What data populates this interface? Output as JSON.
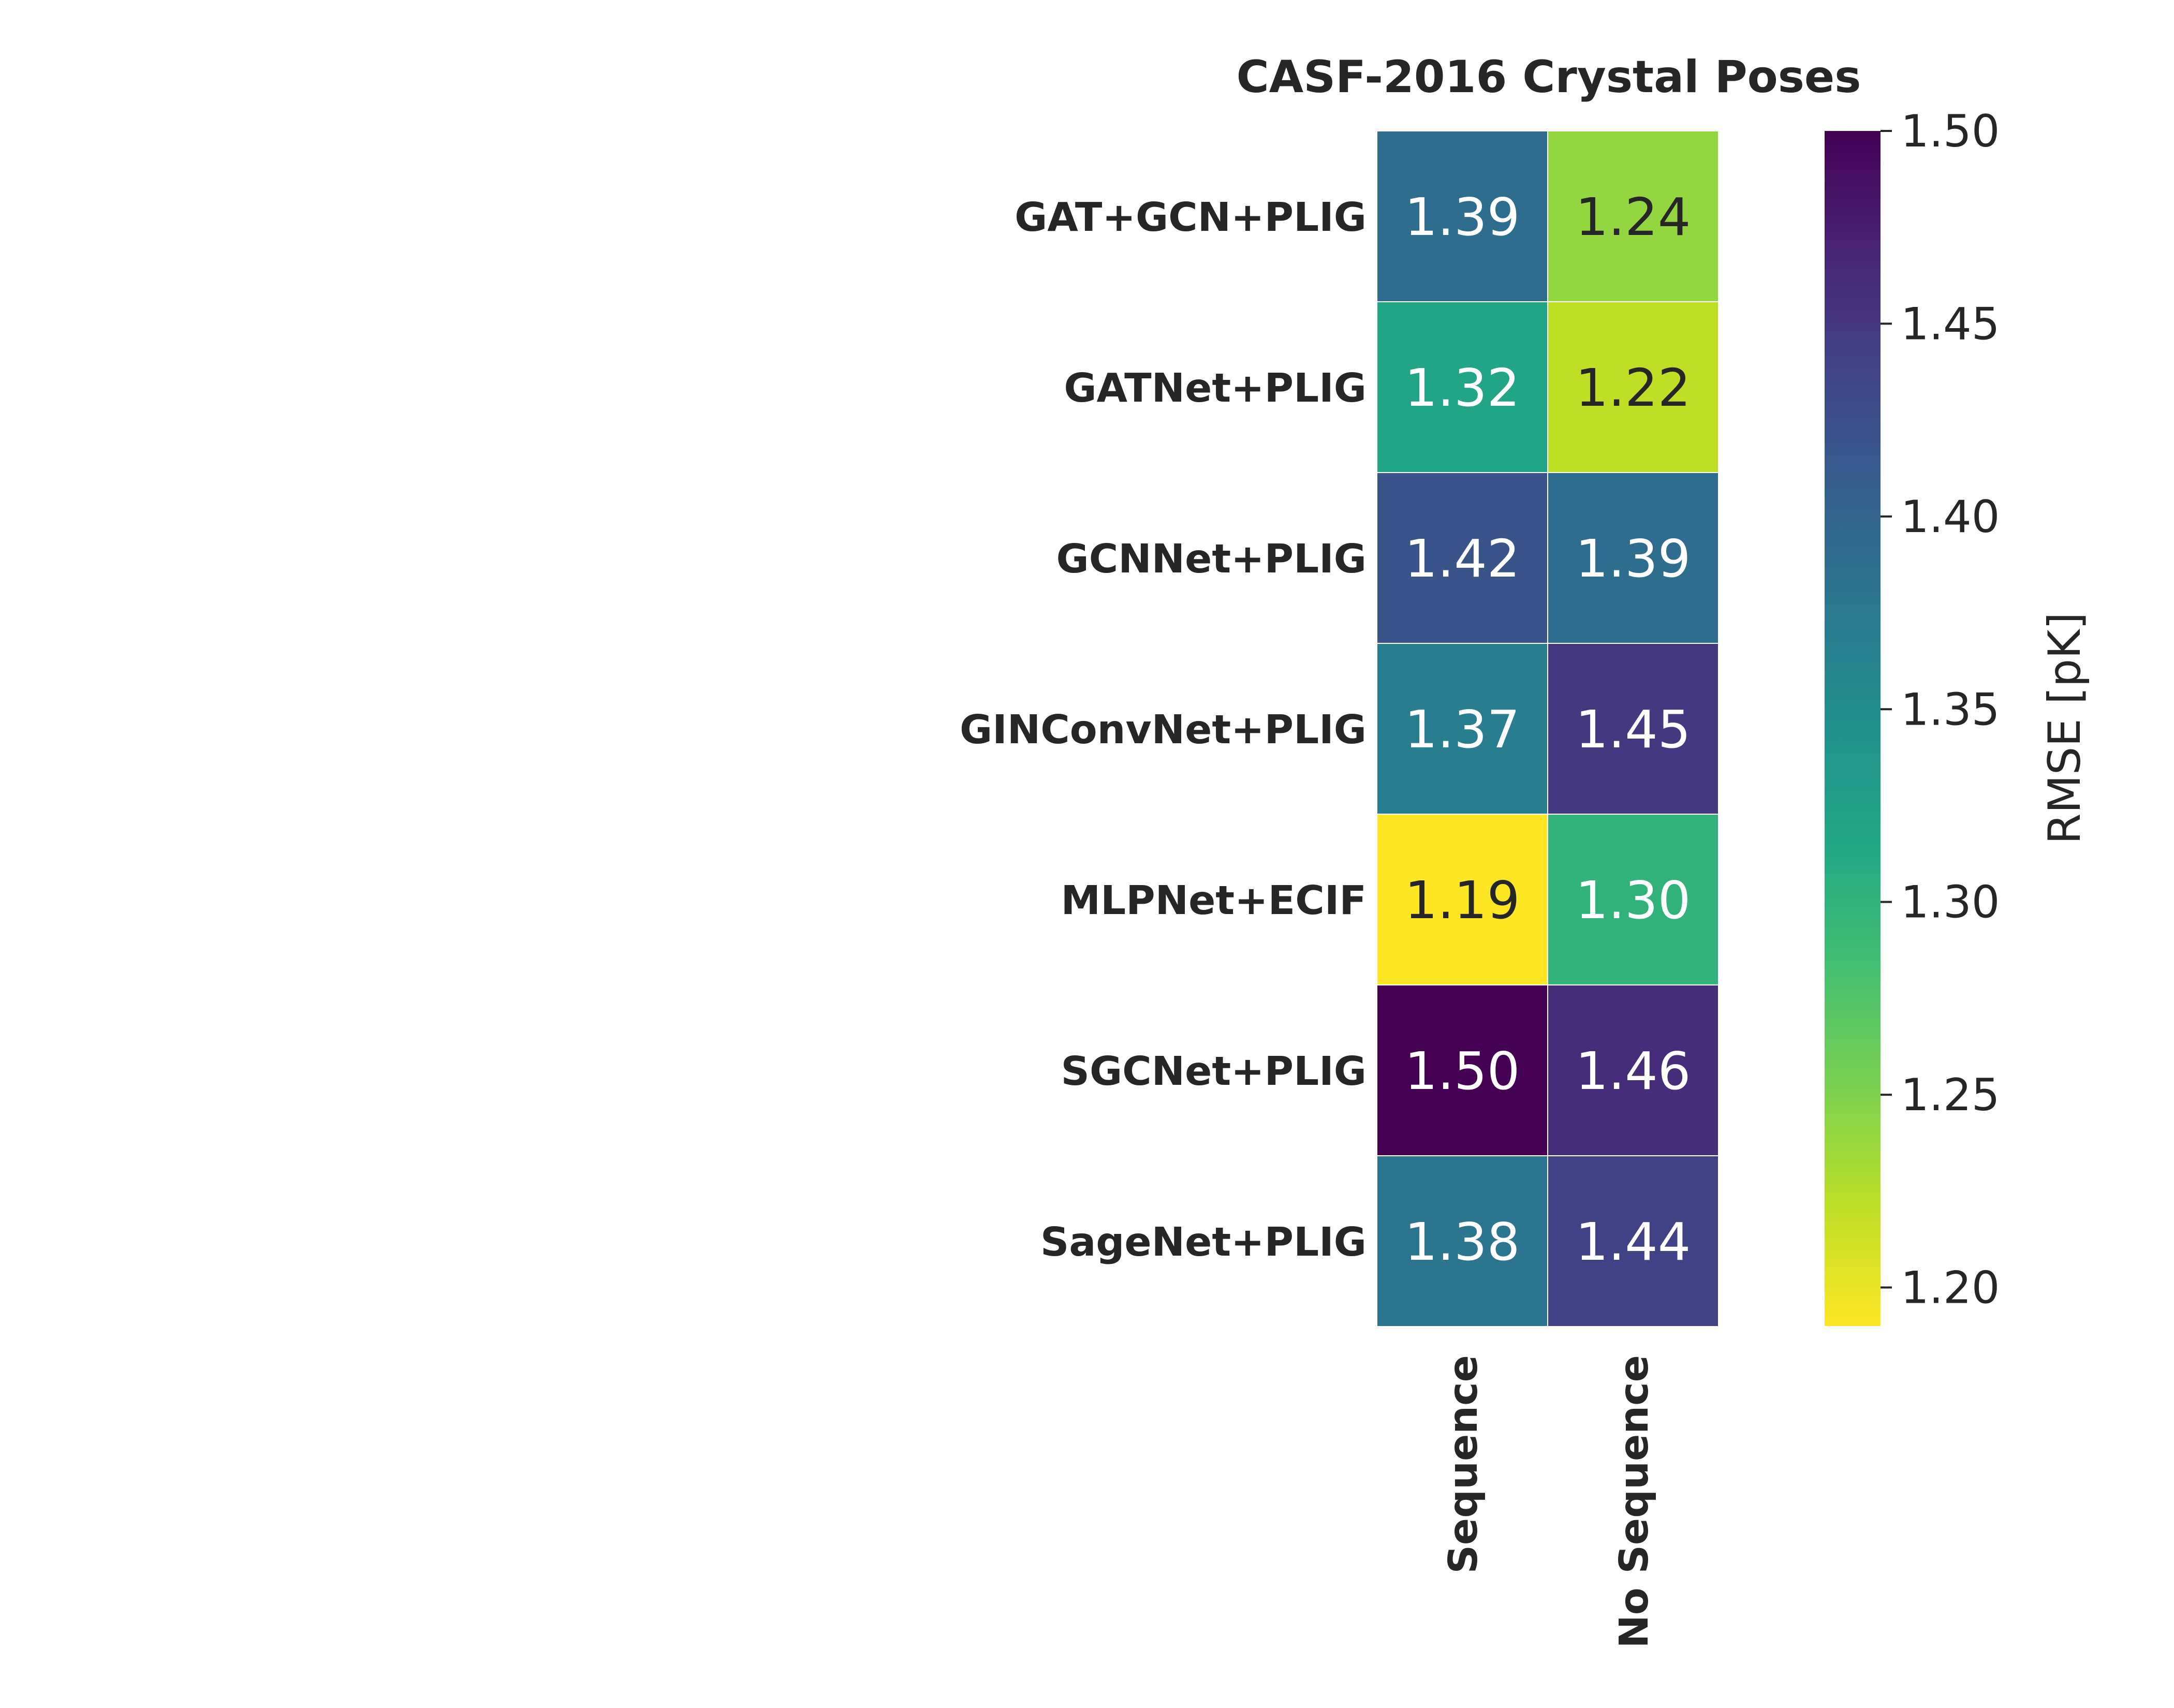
{
  "chart_data": {
    "type": "heatmap",
    "title": "CASF-2016 Crystal Poses",
    "rows": [
      "GAT+GCN+PLIG",
      "GATNet+PLIG",
      "GCNNet+PLIG",
      "GINConvNet+PLIG",
      "MLPNet+ECIF",
      "SGCNet+PLIG",
      "SageNet+PLIG"
    ],
    "columns": [
      "Sequence",
      "No Sequence"
    ],
    "values": [
      [
        1.39,
        1.24
      ],
      [
        1.32,
        1.22
      ],
      [
        1.42,
        1.39
      ],
      [
        1.37,
        1.45
      ],
      [
        1.19,
        1.3
      ],
      [
        1.5,
        1.46
      ],
      [
        1.38,
        1.44
      ]
    ],
    "value_labels": [
      [
        "1.39",
        "1.24"
      ],
      [
        "1.32",
        "1.22"
      ],
      [
        "1.42",
        "1.39"
      ],
      [
        "1.37",
        "1.45"
      ],
      [
        "1.19",
        "1.30"
      ],
      [
        "1.50",
        "1.46"
      ],
      [
        "1.38",
        "1.44"
      ]
    ],
    "colorbar": {
      "label": "RMSE [pK]",
      "range": [
        1.19,
        1.5
      ],
      "ticks": [
        1.2,
        1.25,
        1.3,
        1.35,
        1.4,
        1.45,
        1.5
      ],
      "tick_labels": [
        "1.20",
        "1.25",
        "1.30",
        "1.35",
        "1.40",
        "1.45",
        "1.50"
      ],
      "colormap": "viridis_r"
    }
  }
}
